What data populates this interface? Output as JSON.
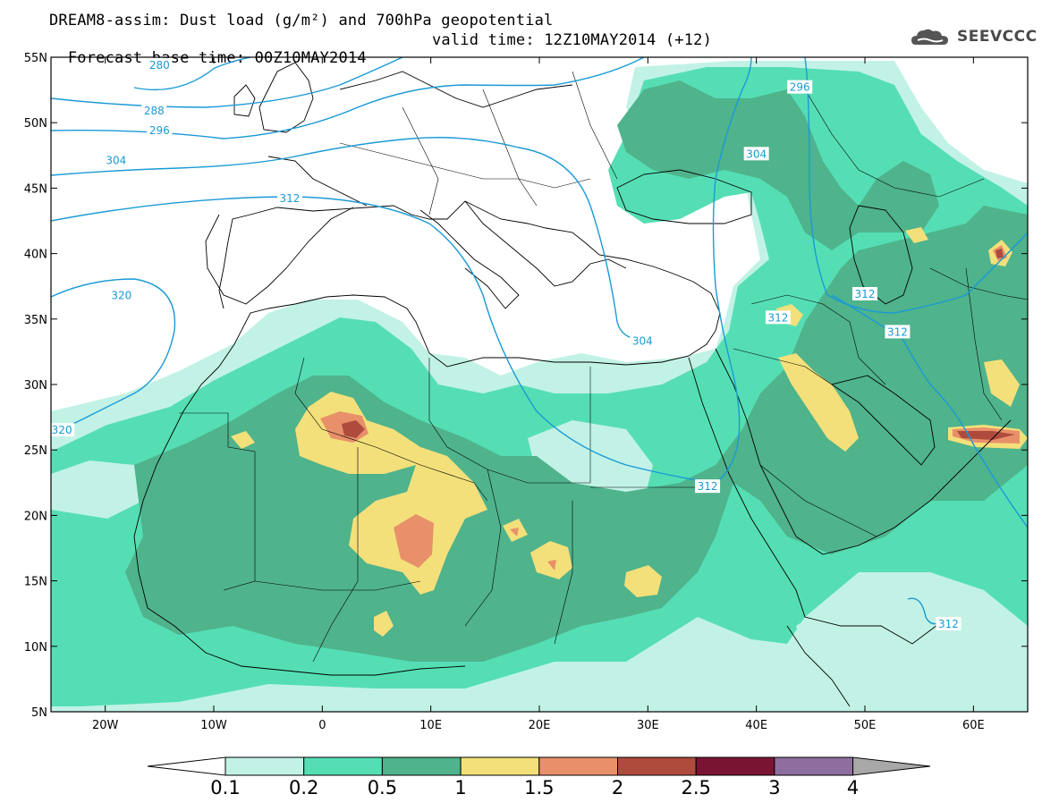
{
  "title_line1": "DREAM8-assim: Dust load (g/m²) and 700hPa geopotential",
  "title_line2_base": "Forecast base time: 00Z10MAY2014",
  "title_line2_valid": "valid time: 12Z10MAY2014 (+12)",
  "logo_text": "SEEVCCC",
  "map": {
    "lon_range": [
      -25,
      65
    ],
    "lat_range": [
      5,
      55
    ],
    "lat_ticks": [
      {
        "value": 55,
        "label": "55N"
      },
      {
        "value": 50,
        "label": "50N"
      },
      {
        "value": 45,
        "label": "45N"
      },
      {
        "value": 40,
        "label": "40N"
      },
      {
        "value": 35,
        "label": "35N"
      },
      {
        "value": 30,
        "label": "30N"
      },
      {
        "value": 25,
        "label": "25N"
      },
      {
        "value": 20,
        "label": "20N"
      },
      {
        "value": 15,
        "label": "15N"
      },
      {
        "value": 10,
        "label": "10N"
      },
      {
        "value": 5,
        "label": "5N"
      }
    ],
    "lon_ticks": [
      {
        "value": -20,
        "label": "20W"
      },
      {
        "value": -10,
        "label": "10W"
      },
      {
        "value": 0,
        "label": "0"
      },
      {
        "value": 10,
        "label": "10E"
      },
      {
        "value": 20,
        "label": "20E"
      },
      {
        "value": 30,
        "label": "30E"
      },
      {
        "value": 40,
        "label": "40E"
      },
      {
        "value": 50,
        "label": "50E"
      },
      {
        "value": 60,
        "label": "60E"
      }
    ],
    "contour_labels": [
      {
        "text": "280",
        "lon": -15,
        "lat": 54.4
      },
      {
        "text": "288",
        "lon": -15.5,
        "lat": 50.9
      },
      {
        "text": "296",
        "lon": 44,
        "lat": 52.7
      },
      {
        "text": "296",
        "lon": -15,
        "lat": 49.4
      },
      {
        "text": "304",
        "lon": 40,
        "lat": 47.6
      },
      {
        "text": "304",
        "lon": -19,
        "lat": 47.1
      },
      {
        "text": "312",
        "lon": -3,
        "lat": 44.2
      },
      {
        "text": "320",
        "lon": -18.5,
        "lat": 36.8
      },
      {
        "text": "320",
        "lon": -24,
        "lat": 26.5
      },
      {
        "text": "312",
        "lon": 50,
        "lat": 36.9
      },
      {
        "text": "312",
        "lon": 42,
        "lat": 35.1
      },
      {
        "text": "312",
        "lon": 53,
        "lat": 34.0
      },
      {
        "text": "304",
        "lon": 29.5,
        "lat": 33.3
      },
      {
        "text": "312",
        "lon": 35.5,
        "lat": 22.2
      },
      {
        "text": "312",
        "lon": 57.7,
        "lat": 11.7
      }
    ]
  },
  "colorbar": {
    "labels": [
      "0.1",
      "0.2",
      "0.5",
      "1",
      "1.5",
      "2",
      "2.5",
      "3",
      "4"
    ],
    "colors": [
      "#c2f2e6",
      "#55deb4",
      "#4fb38c",
      "#f3e07a",
      "#e8906a",
      "#ae4b3d",
      "#7a1433",
      "#8e6e9e"
    ],
    "under_color": "#ffffff",
    "over_color": "#a8a8a8"
  },
  "colors": {
    "contour": "#1a9ad6",
    "coast": "#000000"
  }
}
